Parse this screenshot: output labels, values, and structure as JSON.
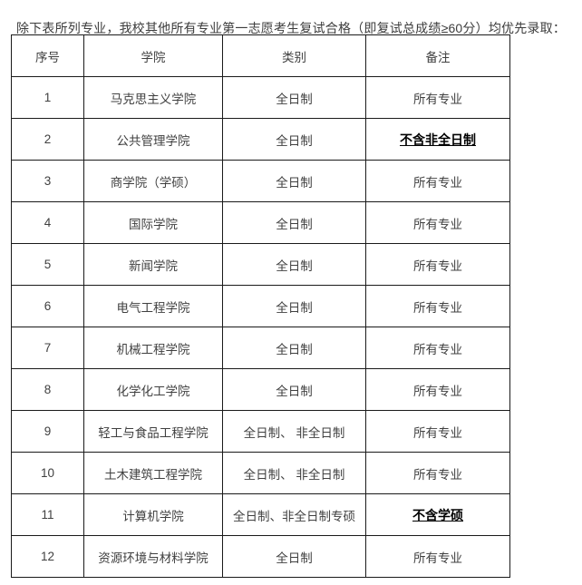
{
  "page": {
    "intro": "除下表所列专业，我校其他所有专业第一志愿考生复试合格（即复试总成绩≥60分）均优先录取："
  },
  "colors": {
    "text": "#404040",
    "emphasis_text": "#000000",
    "table_border": "#1a1a1a",
    "background": "#ffffff"
  },
  "table": {
    "headers": [
      "序号",
      "学院",
      "类别",
      "备注"
    ],
    "rows": [
      {
        "no": "1",
        "college": "马克思主义学院",
        "category": "全日制",
        "remark": "所有专业",
        "emphasis": false
      },
      {
        "no": "2",
        "college": "公共管理学院",
        "category": "全日制",
        "remark": "不含非全日制",
        "emphasis": true
      },
      {
        "no": "3",
        "college": "商学院（学硕）",
        "category": "全日制",
        "remark": "所有专业",
        "emphasis": false
      },
      {
        "no": "4",
        "college": "国际学院",
        "category": "全日制",
        "remark": "所有专业",
        "emphasis": false
      },
      {
        "no": "5",
        "college": "新闻学院",
        "category": "全日制",
        "remark": "所有专业",
        "emphasis": false
      },
      {
        "no": "6",
        "college": "电气工程学院",
        "category": "全日制",
        "remark": "所有专业",
        "emphasis": false
      },
      {
        "no": "7",
        "college": "机械工程学院",
        "category": "全日制",
        "remark": "所有专业",
        "emphasis": false
      },
      {
        "no": "8",
        "college": "化学化工学院",
        "category": "全日制",
        "remark": "所有专业",
        "emphasis": false
      },
      {
        "no": "9",
        "college": "轻工与食品工程学院",
        "category": "全日制、 非全日制",
        "remark": "所有专业",
        "emphasis": false
      },
      {
        "no": "10",
        "college": "土木建筑工程学院",
        "category": "全日制、 非全日制",
        "remark": "所有专业",
        "emphasis": false
      },
      {
        "no": "11",
        "college": "计算机学院",
        "category": "全日制、非全日制专硕",
        "remark": "不含学硕",
        "emphasis": true
      },
      {
        "no": "12",
        "college": "资源环境与材料学院",
        "category": "全日制",
        "remark": "所有专业",
        "emphasis": false
      }
    ]
  }
}
